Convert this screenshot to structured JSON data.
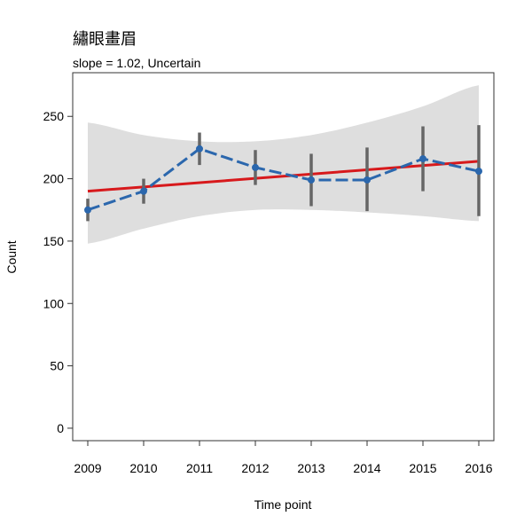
{
  "chart_data": {
    "type": "line",
    "title": "繡眼畫眉",
    "subtitle": "slope = 1.02, Uncertain",
    "xlabel": "Time point",
    "ylabel": "Count",
    "x": [
      "2009",
      "2010",
      "2011",
      "2012",
      "2013",
      "2014",
      "2015",
      "2016"
    ],
    "ylim": [
      -10,
      285
    ],
    "yticks": [
      0,
      50,
      100,
      150,
      200,
      250
    ],
    "grid": false,
    "series": [
      {
        "values": [
          175,
          190,
          224,
          209,
          199,
          199,
          216,
          206
        ],
        "error_low": [
          166,
          180,
          211,
          195,
          178,
          174,
          190,
          170
        ],
        "error_high": [
          184,
          200,
          237,
          223,
          220,
          225,
          242,
          243
        ],
        "color": "#2b67ad"
      }
    ],
    "trend": {
      "start": 190,
      "end": 214,
      "color": "#d7191c"
    },
    "confidence_band": {
      "upper": [
        245,
        235,
        230,
        230,
        235,
        245,
        258,
        275
      ],
      "lower": [
        148,
        160,
        170,
        175,
        175,
        173,
        170,
        166
      ],
      "color": "#dedede"
    }
  }
}
